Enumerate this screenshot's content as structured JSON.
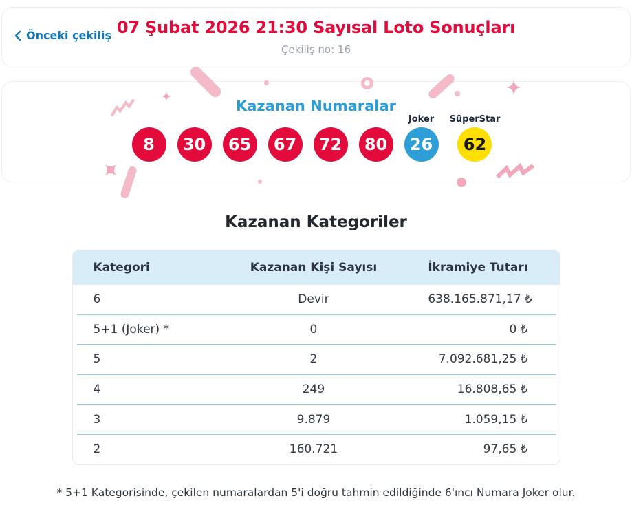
{
  "header": {
    "back_link": "Önceki çekiliş",
    "title": "07 Şubat 2026 21:30 Sayısal Loto Sonuçları",
    "draw_no": "Çekiliş no: 16"
  },
  "winning_numbers": {
    "title": "Kazanan Numaralar",
    "main_numbers": [
      "8",
      "30",
      "65",
      "67",
      "72",
      "80"
    ],
    "special": [
      {
        "label": "Joker",
        "value": "26",
        "type": "joker"
      },
      {
        "label": "SüperStar",
        "value": "62",
        "type": "superstar"
      }
    ]
  },
  "categories": {
    "title": "Kazanan Kategoriler",
    "columns": [
      "Kategori",
      "Kazanan Kişi Sayısı",
      "İkramiye Tutarı"
    ],
    "rows": [
      [
        "6",
        "Devir",
        "638.165.871,17 ₺"
      ],
      [
        "5+1 (Joker) *",
        "0",
        "0 ₺"
      ],
      [
        "5",
        "2",
        "7.092.681,25 ₺"
      ],
      [
        "4",
        "249",
        "16.808,65 ₺"
      ],
      [
        "3",
        "9.879",
        "1.059,15 ₺"
      ],
      [
        "2",
        "160.721",
        "97,65 ₺"
      ]
    ]
  },
  "footnote": "* 5+1 Kategorisinde, çekilen numaralardan 5'i doğru tahmin edildiğinde 6'ıncı Numara Joker olur.",
  "colors": {
    "title_red": "#e30a3c",
    "link_blue": "#1277bd",
    "heading_blue": "#2a9cd8",
    "ball_red": "#e30a3c",
    "joker_blue": "#2e9fd6",
    "superstar_yellow": "#ffdf00",
    "table_header_bg": "#d9edf9",
    "separator_blue": "#8fccec",
    "confetti_pink": "#f5bac8"
  }
}
